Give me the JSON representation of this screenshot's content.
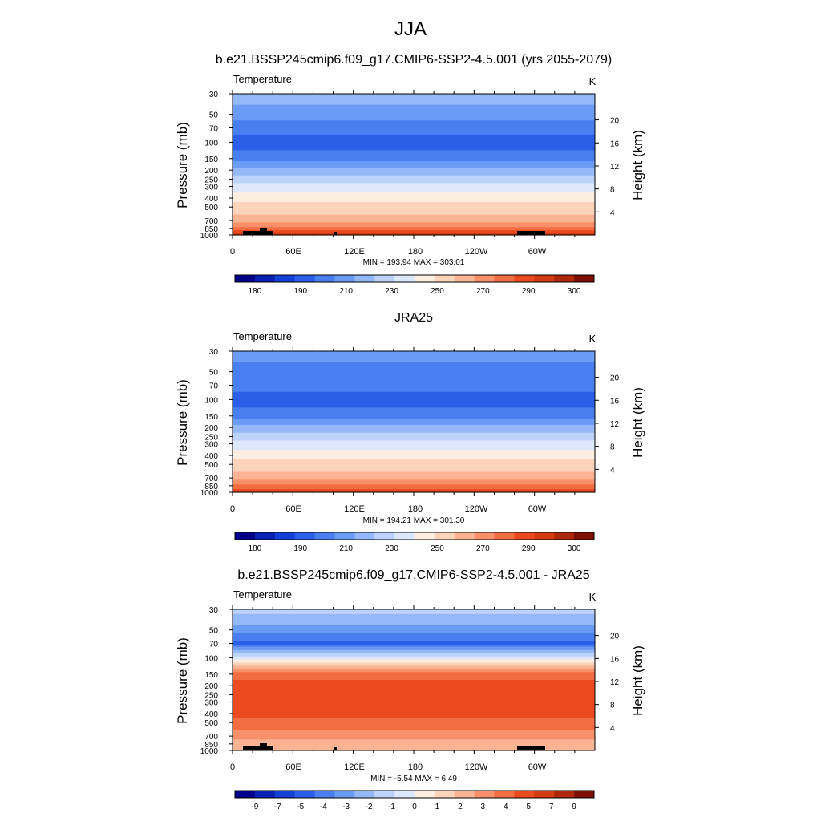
{
  "figure_title": "JJA",
  "colors": {
    "abs_palette": [
      "#00008b",
      "#0a21b3",
      "#1340d6",
      "#2a5fe8",
      "#4a7ff0",
      "#6b9cf5",
      "#94b8f8",
      "#bdd3fb",
      "#dde8fc",
      "#fdeee0",
      "#fcd3bb",
      "#fbb493",
      "#f8916a",
      "#f36d43",
      "#ea4a1f",
      "#d23a12",
      "#b0280c",
      "#7e0f05"
    ],
    "diff_palette": [
      "#00008b",
      "#0a21b3",
      "#1340d6",
      "#2a5fe8",
      "#4a7ff0",
      "#6b9cf5",
      "#94b8f8",
      "#bdd3fb",
      "#dde8fc",
      "#fdeee0",
      "#fcd3bb",
      "#fbb493",
      "#f8916a",
      "#f36d43",
      "#ea4a1f",
      "#d23a12",
      "#b0280c",
      "#7e0f05"
    ],
    "topography": "#000000"
  },
  "chart_data": [
    {
      "type": "heatmap",
      "title": "b.e21.BSSP245cmip6.f09_g17.CMIP6-SSP2-4.5.001 (yrs 2055-2079)",
      "left_label": "Temperature",
      "units": "K",
      "ylabel": "Pressure (mb)",
      "ylabel_right": "Height (km)",
      "x_ticks": [
        "0",
        "60E",
        "120E",
        "180",
        "120W",
        "60W"
      ],
      "y_ticks": [
        "30",
        "50",
        "70",
        "100",
        "150",
        "200",
        "250",
        "300",
        "400",
        "500",
        "700",
        "850",
        "1000"
      ],
      "y_right_ticks": [
        "4",
        "8",
        "12",
        "16",
        "20"
      ],
      "stats": "MIN = 193.94  MAX = 303.01",
      "colorbar_labels": [
        "180",
        "190",
        "210",
        "230",
        "250",
        "270",
        "290",
        "300"
      ],
      "profile_levels": [
        30,
        50,
        70,
        100,
        150,
        200,
        250,
        300,
        400,
        500,
        700,
        850,
        1000
      ],
      "profile_bands": [
        6,
        5,
        4,
        3,
        4,
        6,
        7,
        8,
        9,
        10,
        11,
        13,
        15
      ],
      "min": 193.94,
      "max": 303.01
    },
    {
      "type": "heatmap",
      "title": "JRA25",
      "left_label": "Temperature",
      "units": "K",
      "ylabel": "Pressure (mb)",
      "ylabel_right": "Height (km)",
      "x_ticks": [
        "0",
        "60E",
        "120E",
        "180",
        "120W",
        "60W"
      ],
      "y_ticks": [
        "30",
        "50",
        "70",
        "100",
        "150",
        "200",
        "250",
        "300",
        "400",
        "500",
        "700",
        "850",
        "1000"
      ],
      "y_right_ticks": [
        "4",
        "8",
        "12",
        "16",
        "20"
      ],
      "stats": "MIN = 194.21  MAX = 301.30",
      "colorbar_labels": [
        "180",
        "190",
        "210",
        "230",
        "250",
        "270",
        "290",
        "300"
      ],
      "profile_levels": [
        30,
        50,
        70,
        100,
        150,
        200,
        250,
        300,
        400,
        500,
        700,
        850,
        1000
      ],
      "profile_bands": [
        5,
        4,
        4,
        3,
        4,
        6,
        7,
        8,
        9,
        10,
        11,
        13,
        14
      ],
      "min": 194.21,
      "max": 301.3
    },
    {
      "type": "heatmap",
      "title": "b.e21.BSSP245cmip6.f09_g17.CMIP6-SSP2-4.5.001 - JRA25",
      "left_label": "Temperature",
      "units": "K",
      "ylabel": "Pressure (mb)",
      "ylabel_right": "Height (km)",
      "x_ticks": [
        "0",
        "60E",
        "120E",
        "180",
        "120W",
        "60W"
      ],
      "y_ticks": [
        "30",
        "50",
        "70",
        "100",
        "150",
        "200",
        "250",
        "300",
        "400",
        "500",
        "700",
        "850",
        "1000"
      ],
      "y_right_ticks": [
        "4",
        "8",
        "12",
        "16",
        "20"
      ],
      "stats": "MIN =  -5.54  MAX =   6.49",
      "colorbar_labels": [
        "-9",
        "-7",
        "-5",
        "-4",
        "-3",
        "-2",
        "-1",
        "0",
        "1",
        "2",
        "3",
        "4",
        "5",
        "7",
        "9"
      ],
      "profile_levels": [
        30,
        50,
        70,
        100,
        150,
        200,
        250,
        300,
        400,
        500,
        700,
        850,
        1000
      ],
      "profile_bands": [
        7,
        5,
        3,
        8,
        13,
        14,
        14,
        14,
        14,
        13,
        12,
        11,
        11
      ],
      "min": -5.54,
      "max": 6.49
    }
  ]
}
